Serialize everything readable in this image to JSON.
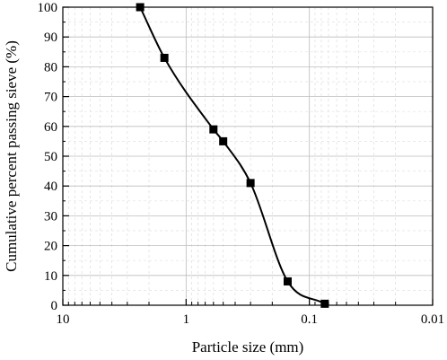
{
  "chart_data": {
    "type": "line",
    "title": "",
    "xlabel": "Particle size (mm)",
    "ylabel": "Cumulative percent passing sieve (%)",
    "x_scale": "log",
    "x_reversed": true,
    "xlim": [
      10,
      0.01
    ],
    "ylim": [
      0,
      100
    ],
    "x_ticks": [
      10,
      1,
      0.1,
      0.01
    ],
    "x_tick_labels": [
      "10",
      "1",
      "0.1",
      "0.01"
    ],
    "y_ticks": [
      0,
      10,
      20,
      30,
      40,
      50,
      60,
      70,
      80,
      90,
      100
    ],
    "y_tick_labels": [
      "0",
      "10",
      "20",
      "30",
      "40",
      "50",
      "60",
      "70",
      "80",
      "90",
      "100"
    ],
    "grid": true,
    "series": [
      {
        "marker": "square",
        "color": "#000000",
        "x": [
          2.36,
          1.5,
          0.6,
          0.5,
          0.3,
          0.15,
          0.075
        ],
        "y": [
          100,
          83,
          59,
          55,
          41,
          8,
          0.5
        ]
      }
    ]
  }
}
